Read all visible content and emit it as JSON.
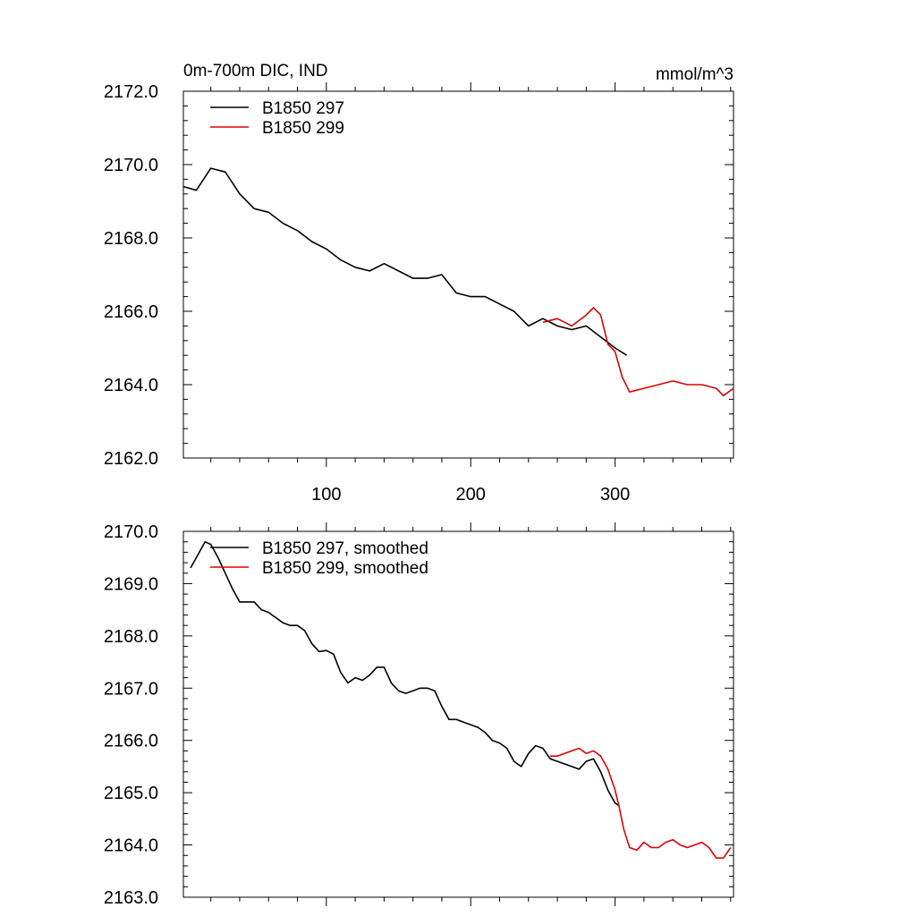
{
  "chart_data": [
    {
      "type": "line",
      "title_left": "0m-700m DIC, IND",
      "title_right": "mmol/m^3",
      "xlim": [
        1,
        382
      ],
      "ylim": [
        2162.0,
        2172.0
      ],
      "xticks": [
        100,
        200,
        300
      ],
      "xtick_labels": [
        "100",
        "200",
        "300"
      ],
      "yticks": [
        2162,
        2164,
        2166,
        2168,
        2170,
        2172
      ],
      "ytick_labels": [
        "2162.0",
        "2164.0",
        "2166.0",
        "2168.0",
        "2170.0",
        "2172.0"
      ],
      "legend_position": "top-left",
      "series": [
        {
          "name": "B1850 297",
          "color": "#000000",
          "x": [
            1,
            10,
            20,
            30,
            40,
            50,
            60,
            70,
            80,
            90,
            100,
            110,
            120,
            130,
            140,
            150,
            160,
            170,
            180,
            190,
            200,
            210,
            220,
            230,
            240,
            250,
            260,
            270,
            280,
            290,
            300,
            308
          ],
          "y": [
            2169.4,
            2169.3,
            2169.9,
            2169.8,
            2169.2,
            2168.8,
            2168.7,
            2168.4,
            2168.2,
            2167.9,
            2167.7,
            2167.4,
            2167.2,
            2167.1,
            2167.3,
            2167.1,
            2166.9,
            2166.9,
            2167.0,
            2166.5,
            2166.4,
            2166.4,
            2166.2,
            2166.0,
            2165.6,
            2165.8,
            2165.6,
            2165.5,
            2165.6,
            2165.3,
            2165.0,
            2164.8
          ]
        },
        {
          "name": "B1850 299",
          "color": "#e00000",
          "x": [
            250,
            260,
            270,
            280,
            285,
            290,
            295,
            300,
            305,
            310,
            320,
            330,
            340,
            350,
            360,
            370,
            375,
            382
          ],
          "y": [
            2165.7,
            2165.8,
            2165.6,
            2165.9,
            2166.1,
            2165.9,
            2165.1,
            2164.9,
            2164.2,
            2163.8,
            2163.9,
            2164.0,
            2164.1,
            2164.0,
            2164.0,
            2163.9,
            2163.7,
            2163.9
          ]
        }
      ]
    },
    {
      "type": "line",
      "title_left": "",
      "title_right": "",
      "xlim": [
        1,
        382
      ],
      "ylim": [
        2163.0,
        2170.0
      ],
      "xticks": [
        100,
        200,
        300
      ],
      "xtick_labels": [
        "",
        "",
        ""
      ],
      "yticks": [
        2163,
        2164,
        2165,
        2166,
        2167,
        2168,
        2169,
        2170
      ],
      "ytick_labels": [
        "2163.0",
        "2164.0",
        "2165.0",
        "2166.0",
        "2167.0",
        "2168.0",
        "2169.0",
        "2170.0"
      ],
      "legend_position": "top-left",
      "series": [
        {
          "name": "B1850 297, smoothed",
          "color": "#000000",
          "x": [
            6,
            12,
            16,
            20,
            25,
            30,
            35,
            40,
            45,
            50,
            55,
            60,
            65,
            70,
            75,
            80,
            85,
            90,
            95,
            100,
            105,
            110,
            115,
            120,
            125,
            130,
            135,
            140,
            145,
            150,
            155,
            160,
            165,
            170,
            175,
            180,
            185,
            190,
            195,
            200,
            205,
            210,
            215,
            220,
            225,
            230,
            235,
            240,
            245,
            250,
            255,
            260,
            265,
            270,
            275,
            280,
            285,
            290,
            295,
            300,
            303
          ],
          "y": [
            2169.3,
            2169.6,
            2169.8,
            2169.75,
            2169.5,
            2169.2,
            2168.9,
            2168.65,
            2168.65,
            2168.65,
            2168.5,
            2168.45,
            2168.35,
            2168.25,
            2168.2,
            2168.2,
            2168.1,
            2167.85,
            2167.7,
            2167.72,
            2167.65,
            2167.3,
            2167.1,
            2167.2,
            2167.15,
            2167.25,
            2167.4,
            2167.4,
            2167.1,
            2166.95,
            2166.9,
            2166.95,
            2167.0,
            2167.0,
            2166.95,
            2166.65,
            2166.4,
            2166.4,
            2166.35,
            2166.3,
            2166.25,
            2166.15,
            2166.0,
            2165.95,
            2165.85,
            2165.6,
            2165.5,
            2165.75,
            2165.9,
            2165.85,
            2165.65,
            2165.6,
            2165.55,
            2165.5,
            2165.45,
            2165.6,
            2165.65,
            2165.4,
            2165.05,
            2164.8,
            2164.75
          ]
        },
        {
          "name": "B1850 299, smoothed",
          "color": "#e00000",
          "x": [
            255,
            260,
            265,
            270,
            275,
            280,
            285,
            290,
            295,
            300,
            303,
            306,
            310,
            315,
            320,
            325,
            330,
            335,
            340,
            345,
            350,
            355,
            360,
            365,
            370,
            375,
            380
          ],
          "y": [
            2165.7,
            2165.7,
            2165.75,
            2165.8,
            2165.85,
            2165.75,
            2165.8,
            2165.7,
            2165.45,
            2165.05,
            2164.7,
            2164.3,
            2163.95,
            2163.9,
            2164.05,
            2163.95,
            2163.95,
            2164.05,
            2164.1,
            2164.0,
            2163.95,
            2164.0,
            2164.05,
            2163.95,
            2163.75,
            2163.75,
            2163.95
          ]
        }
      ]
    }
  ]
}
